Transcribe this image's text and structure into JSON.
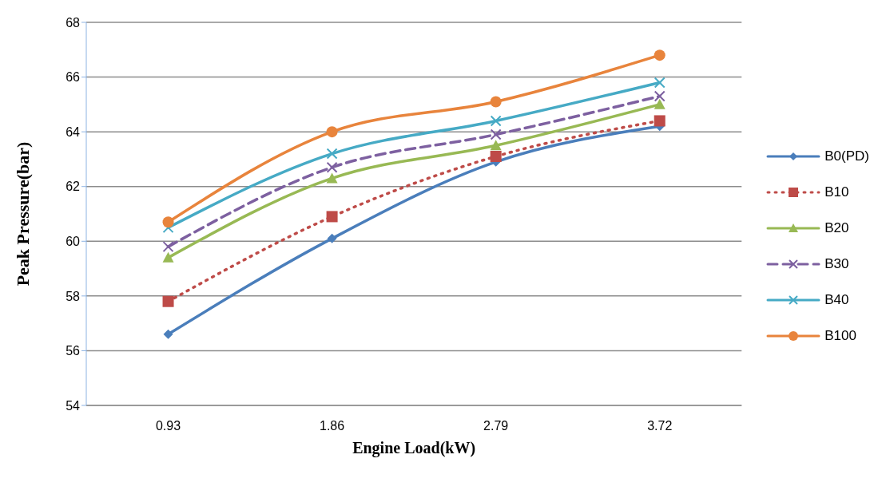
{
  "chart_data": {
    "type": "line",
    "xlabel": "Engine Load(kW)",
    "ylabel": "Peak Pressure(bar)",
    "categories": [
      "0.93",
      "1.86",
      "2.79",
      "3.72"
    ],
    "ylim": [
      54,
      68
    ],
    "yticks": [
      54,
      56,
      58,
      60,
      62,
      64,
      66,
      68
    ],
    "grid": "y",
    "legend": "right",
    "series": [
      {
        "name": "B0(PD)",
        "color": "#4a7ebb",
        "marker": "diamond",
        "line_style": "solid",
        "values": [
          56.6,
          60.1,
          62.9,
          64.2
        ]
      },
      {
        "name": "B10",
        "color": "#be4b48",
        "marker": "square",
        "line_style": "dotted",
        "values": [
          57.8,
          60.9,
          63.1,
          64.4
        ]
      },
      {
        "name": "B20",
        "color": "#98b954",
        "marker": "triangle",
        "line_style": "solid",
        "values": [
          59.4,
          62.3,
          63.5,
          65.0
        ]
      },
      {
        "name": "B30",
        "color": "#7d60a0",
        "marker": "cross",
        "line_style": "dashed",
        "values": [
          59.8,
          62.7,
          63.9,
          65.3
        ]
      },
      {
        "name": "B40",
        "color": "#46aac5",
        "marker": "cross",
        "line_style": "solid",
        "values": [
          60.5,
          63.2,
          64.4,
          65.8
        ]
      },
      {
        "name": "B100",
        "color": "#e8843c",
        "marker": "circle",
        "line_style": "solid",
        "values": [
          60.7,
          64.0,
          65.1,
          66.8
        ]
      }
    ]
  }
}
